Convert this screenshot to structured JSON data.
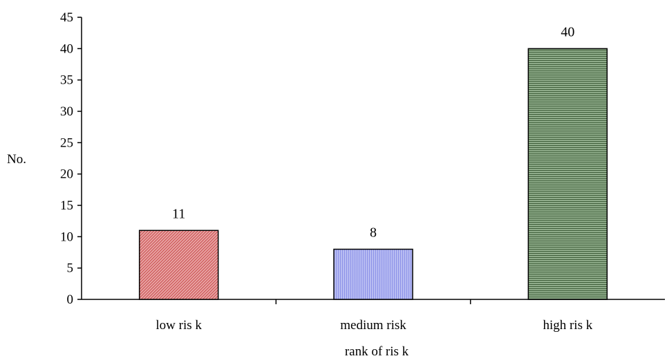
{
  "chart_data": {
    "type": "bar",
    "title": "",
    "xlabel": "rank of ris k",
    "ylabel": "No.",
    "categories": [
      "low ris k",
      "medium risk",
      "high ris k"
    ],
    "values": [
      11,
      8,
      40
    ],
    "value_labels": [
      "11",
      "8",
      "40"
    ],
    "ylim": [
      0,
      45
    ],
    "yticks": [
      0,
      5,
      10,
      15,
      20,
      25,
      30,
      35,
      40,
      45
    ],
    "ytick_labels": [
      "0",
      "5",
      "10",
      "15",
      "20",
      "25",
      "30",
      "35",
      "40",
      "45"
    ],
    "grid": false,
    "legend": "none",
    "bar_colors": [
      "#e8a5a5",
      "#b8bcf2",
      "#8fac8a"
    ],
    "bar_pattern_colors": [
      "#c94a4a",
      "#8c92e8",
      "#3f5e3a"
    ]
  }
}
